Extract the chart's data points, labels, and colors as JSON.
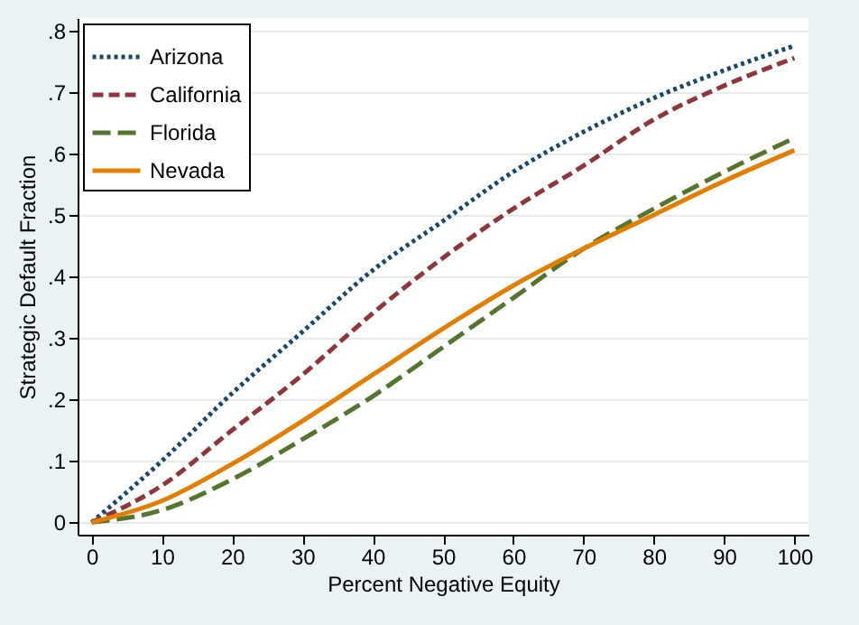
{
  "chart_data": {
    "type": "line",
    "xlabel": "Percent Negative Equity",
    "ylabel": "Strategic Default Fraction",
    "x": [
      0,
      10,
      20,
      30,
      40,
      50,
      60,
      70,
      80,
      90,
      100
    ],
    "series": [
      {
        "name": "Arizona",
        "color": "#1a476f",
        "line_style": "dotted",
        "values": [
          0,
          0.1,
          0.21,
          0.31,
          0.41,
          0.49,
          0.57,
          0.635,
          0.69,
          0.735,
          0.775
        ]
      },
      {
        "name": "California",
        "color": "#90353b",
        "line_style": "dashed",
        "values": [
          0,
          0.06,
          0.15,
          0.24,
          0.34,
          0.43,
          0.51,
          0.58,
          0.655,
          0.71,
          0.755
        ]
      },
      {
        "name": "Florida",
        "color": "#55752f",
        "line_style": "dashed",
        "values": [
          0,
          0.02,
          0.07,
          0.135,
          0.205,
          0.285,
          0.365,
          0.445,
          0.51,
          0.57,
          0.625
        ]
      },
      {
        "name": "Nevada",
        "color": "#e37e00",
        "line_style": "solid",
        "values": [
          0,
          0.035,
          0.095,
          0.165,
          0.24,
          0.315,
          0.385,
          0.445,
          0.5,
          0.555,
          0.605
        ]
      }
    ],
    "xlim": [
      -2,
      102
    ],
    "xticks": [
      0,
      10,
      20,
      30,
      40,
      50,
      60,
      70,
      80,
      90,
      100
    ],
    "ylim": [
      -0.02,
      0.82
    ],
    "yticks": [
      0,
      {
        "value": 0.1,
        "label": ".1"
      },
      {
        "value": 0.2,
        "label": ".2"
      },
      {
        "value": 0.3,
        "label": ".3"
      },
      {
        "value": 0.4,
        "label": ".4"
      },
      {
        "value": 0.5,
        "label": ".5"
      },
      {
        "value": 0.6,
        "label": ".6"
      },
      {
        "value": 0.7,
        "label": ".7"
      },
      {
        "value": 0.8,
        "label": ".8"
      }
    ],
    "grid": "y",
    "legend": "top left"
  }
}
